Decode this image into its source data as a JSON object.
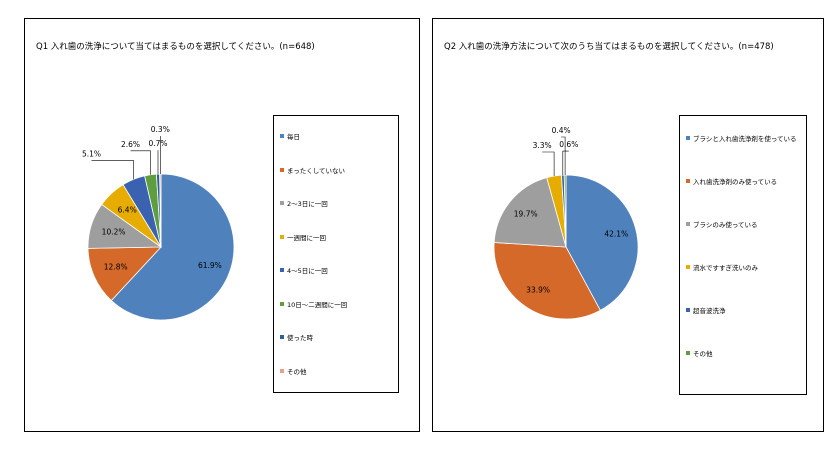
{
  "chart_data": [
    {
      "type": "pie",
      "title": "Q1 入れ歯の洗浄について当てはまるものを選択してください。(n=648)",
      "slices": [
        {
          "label": "毎日",
          "value": 61.9,
          "display": "61.9%",
          "color": "#4f81bd"
        },
        {
          "label": "まったくしていない",
          "value": 12.8,
          "display": "12.8%",
          "color": "#d4692a"
        },
        {
          "label": "2～3日に一回",
          "value": 10.2,
          "display": "10.2%",
          "color": "#9e9e9e"
        },
        {
          "label": "一週間に一回",
          "value": 6.4,
          "display": "6.4%",
          "color": "#e6ac00"
        },
        {
          "label": "4～5日に一回",
          "value": 5.1,
          "display": "5.1%",
          "color": "#3a62b0"
        },
        {
          "label": "10日～二週間に一回",
          "value": 2.6,
          "display": "2.6%",
          "color": "#5e9e3e"
        },
        {
          "label": "使った時",
          "value": 0.7,
          "display": "0.7%",
          "color": "#2f5f96"
        },
        {
          "label": "その他",
          "value": 0.3,
          "display": "0.3%",
          "color": "#e8a08a"
        }
      ],
      "legend_position": "right"
    },
    {
      "type": "pie",
      "title": "Q2 入れ歯の洗浄方法について次のうち当てはまるものを選択してください。(n=478)",
      "slices": [
        {
          "label": "ブラシと入れ歯洗浄剤を使っている",
          "value": 42.1,
          "display": "42.1%",
          "color": "#4f81bd"
        },
        {
          "label": "入れ歯洗浄剤のみ使っている",
          "value": 33.9,
          "display": "33.9%",
          "color": "#d4692a"
        },
        {
          "label": "ブラシのみ使っている",
          "value": 19.7,
          "display": "19.7%",
          "color": "#9e9e9e"
        },
        {
          "label": "流水ですすぎ洗いのみ",
          "value": 3.3,
          "display": "3.3%",
          "color": "#e6ac00"
        },
        {
          "label": "超音波洗浄",
          "value": 0.6,
          "display": "0.6%",
          "color": "#3a62b0"
        },
        {
          "label": "その他",
          "value": 0.4,
          "display": "0.4%",
          "color": "#5e9e3e"
        }
      ],
      "legend_position": "right"
    }
  ]
}
